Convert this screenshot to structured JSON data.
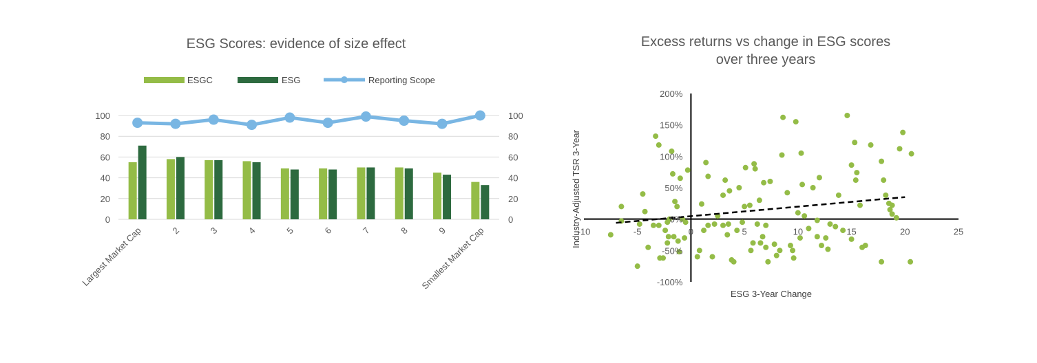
{
  "colors": {
    "esgc": "#94bc47",
    "esg": "#2d6a3f",
    "reporting_scope": "#79b6e3",
    "scatter_point": "#94bc47",
    "gridline": "#d9d9d9",
    "axis": "#000000",
    "trendline": "#000000"
  },
  "chart_data": [
    {
      "type": "bar",
      "title": "ESG Scores: evidence of size effect",
      "categories": [
        "Largest Market Cap",
        "2",
        "3",
        "4",
        "5",
        "6",
        "7",
        "8",
        "9",
        "Smallest Market Cap"
      ],
      "series": [
        {
          "name": "ESGC",
          "type": "bar",
          "axis": "left",
          "values": [
            55,
            58,
            57,
            56,
            49,
            49,
            50,
            50,
            45,
            36
          ]
        },
        {
          "name": "ESG",
          "type": "bar",
          "axis": "left",
          "values": [
            71,
            60,
            57,
            55,
            48,
            48,
            50,
            49,
            43,
            33
          ]
        },
        {
          "name": "Reporting Scope",
          "type": "line",
          "axis": "right",
          "values": [
            93,
            92,
            96,
            91,
            98,
            93,
            99,
            95,
            92,
            100
          ]
        }
      ],
      "ylim": [
        0,
        100
      ],
      "y_ticks": [
        "0",
        "20",
        "40",
        "60",
        "80",
        "100"
      ],
      "y2lim": [
        0,
        100
      ],
      "y2_ticks": [
        "0",
        "20",
        "40",
        "60",
        "80",
        "100"
      ],
      "grid": true,
      "legend": "top"
    },
    {
      "type": "scatter",
      "title_lines": [
        "Excess returns vs change in ESG scores",
        "over three years"
      ],
      "xlabel": "ESG 3-Year Change",
      "ylabel": "Industry-Adjusted TSR 3-Year",
      "xlim": [
        -10,
        25
      ],
      "ylim": [
        -100,
        200
      ],
      "x_ticks": [
        "-10",
        "-5",
        "0",
        "5",
        "10",
        "15",
        "20",
        "25"
      ],
      "y_ticks": [
        "-100%",
        "-50%",
        "0%",
        "50%",
        "100%",
        "150%",
        "200%"
      ],
      "grid": false,
      "trendline": {
        "style": "dashed",
        "from": [
          -7,
          -6
        ],
        "to": [
          20,
          35
        ]
      },
      "points": [
        [
          -7.5,
          -25
        ],
        [
          -6.5,
          20
        ],
        [
          -6.5,
          -3
        ],
        [
          -5,
          -75
        ],
        [
          -4.8,
          -8
        ],
        [
          -4.5,
          40
        ],
        [
          -4.3,
          12
        ],
        [
          -4,
          -45
        ],
        [
          -3.5,
          -10
        ],
        [
          -3.3,
          132
        ],
        [
          -3,
          118
        ],
        [
          -3,
          -10
        ],
        [
          -2.9,
          -62
        ],
        [
          -2.6,
          -62
        ],
        [
          -2.4,
          -18
        ],
        [
          -2.2,
          -5
        ],
        [
          -2.2,
          -38
        ],
        [
          -2.1,
          -28
        ],
        [
          -2,
          0
        ],
        [
          -1.8,
          108
        ],
        [
          -1.7,
          72
        ],
        [
          -1.6,
          -28
        ],
        [
          -1.5,
          28
        ],
        [
          -1.3,
          20
        ],
        [
          -1.2,
          -35
        ],
        [
          -1.1,
          -52
        ],
        [
          -1,
          65
        ],
        [
          -0.8,
          0
        ],
        [
          -0.6,
          -30
        ],
        [
          -0.5,
          -5
        ],
        [
          -0.3,
          78
        ],
        [
          0.6,
          -60
        ],
        [
          0.8,
          -50
        ],
        [
          1,
          24
        ],
        [
          1.2,
          -18
        ],
        [
          1.4,
          90
        ],
        [
          1.6,
          68
        ],
        [
          1.6,
          -10
        ],
        [
          2,
          -60
        ],
        [
          2.2,
          -8
        ],
        [
          2.5,
          5
        ],
        [
          3,
          38
        ],
        [
          3,
          -10
        ],
        [
          3.2,
          62
        ],
        [
          3.4,
          -25
        ],
        [
          3.5,
          -8
        ],
        [
          3.6,
          45
        ],
        [
          3.8,
          -65
        ],
        [
          4,
          -68
        ],
        [
          4.3,
          -18
        ],
        [
          4.5,
          50
        ],
        [
          4.8,
          -5
        ],
        [
          5,
          20
        ],
        [
          5.1,
          82
        ],
        [
          5.5,
          22
        ],
        [
          5.6,
          -50
        ],
        [
          5.8,
          -38
        ],
        [
          5.9,
          88
        ],
        [
          6,
          80
        ],
        [
          6.2,
          -8
        ],
        [
          6.4,
          30
        ],
        [
          6.5,
          -38
        ],
        [
          6.7,
          -28
        ],
        [
          6.8,
          58
        ],
        [
          7,
          -45
        ],
        [
          7,
          -10
        ],
        [
          7.2,
          -68
        ],
        [
          7.4,
          60
        ],
        [
          7.8,
          -40
        ],
        [
          8,
          -58
        ],
        [
          8.3,
          -50
        ],
        [
          8.5,
          102
        ],
        [
          8.6,
          162
        ],
        [
          9,
          42
        ],
        [
          9.3,
          -42
        ],
        [
          9.5,
          -50
        ],
        [
          9.6,
          -62
        ],
        [
          9.8,
          155
        ],
        [
          10,
          10
        ],
        [
          10.2,
          -30
        ],
        [
          10.3,
          105
        ],
        [
          10.4,
          55
        ],
        [
          10.6,
          5
        ],
        [
          11,
          -15
        ],
        [
          11.4,
          50
        ],
        [
          11.8,
          -2
        ],
        [
          11.8,
          -28
        ],
        [
          12,
          66
        ],
        [
          12.2,
          -42
        ],
        [
          12.6,
          -30
        ],
        [
          12.8,
          -48
        ],
        [
          13,
          -8
        ],
        [
          13.5,
          -12
        ],
        [
          13.8,
          38
        ],
        [
          14.2,
          -18
        ],
        [
          14.6,
          165
        ],
        [
          15,
          -32
        ],
        [
          15,
          86
        ],
        [
          15.3,
          122
        ],
        [
          15.4,
          62
        ],
        [
          15.5,
          74
        ],
        [
          15.8,
          22
        ],
        [
          16,
          -45
        ],
        [
          16.3,
          -42
        ],
        [
          16.8,
          118
        ],
        [
          17.8,
          92
        ],
        [
          17.8,
          -68
        ],
        [
          18,
          62
        ],
        [
          18.2,
          38
        ],
        [
          18.5,
          25
        ],
        [
          18.6,
          15
        ],
        [
          18.8,
          22
        ],
        [
          18.8,
          8
        ],
        [
          19.2,
          2
        ],
        [
          19.5,
          112
        ],
        [
          19.8,
          138
        ],
        [
          20.5,
          -68
        ],
        [
          20.6,
          104
        ]
      ]
    }
  ]
}
